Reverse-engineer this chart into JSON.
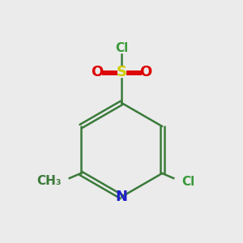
{
  "background_color": "#ebebeb",
  "bond_color": "#3a7a3a",
  "bond_width": 1.8,
  "colors": {
    "N": "#2020cc",
    "S": "#cccc00",
    "O": "#dd0000",
    "Cl": "#3a9a3a",
    "CH3": "#3a7a3a"
  },
  "font_sizes": {
    "N": 13,
    "S": 13,
    "O": 13,
    "Cl": 11,
    "CH3": 11
  }
}
